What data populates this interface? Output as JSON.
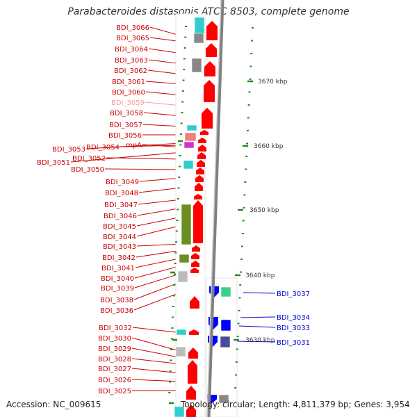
{
  "title": "Parabacteroides distasonis ATCC 8503, complete genome",
  "accession_label": "Accession: NC_009615",
  "summary_label": "Topology: circular; Length: 4,811,379 bp; Genes: 3,954",
  "scale_labels": [
    "3670 kbp",
    "3660 kbp",
    "3650 kbp",
    "3640 kbp",
    "3630 kbp"
  ],
  "left_genes": [
    "BDI_3066",
    "BDI_3065",
    "BDI_3064",
    "BDI_3063",
    "BDI_3062",
    "BDI_3061",
    "BDI_3060",
    "BDI_3059",
    "BDI_3058",
    "BDI_3057",
    "BDI_3056",
    "BDI_3053",
    "BDI_3054",
    "rnpA",
    "BDI_3051",
    "BDI_3052",
    "BDI_3050",
    "BDI_3049",
    "BDI_3048",
    "BDI_3047",
    "BDI_3046",
    "BDI_3045",
    "BDI_3044",
    "BDI_3043",
    "BDI_3042",
    "BDI_3041",
    "BDI_3040",
    "BDI_3039",
    "BDI_3038",
    "BDI_3036",
    "BDI_3032",
    "BDI_3030",
    "BDI_3029",
    "BDI_3028",
    "BDI_3027",
    "BDI_3026",
    "BDI_3025"
  ],
  "right_genes": [
    "BDI_3037",
    "BDI_3034",
    "BDI_3033",
    "BDI_3031"
  ],
  "colors": {
    "forward_gene": "#ff0000",
    "reverse_gene": "#0000ff",
    "left_label": "#cc0000",
    "faded_label": "#ff9999",
    "right_label": "#0000cc",
    "backbone": "#888888",
    "tick": "#228b22",
    "cyan_feature": "#33cccc",
    "gray_feature": "#888888",
    "olive_feature": "#6b8e23",
    "magenta_feature": "#cc33cc",
    "salmon_feature": "#f08080",
    "teal_feature": "#20b2aa"
  }
}
